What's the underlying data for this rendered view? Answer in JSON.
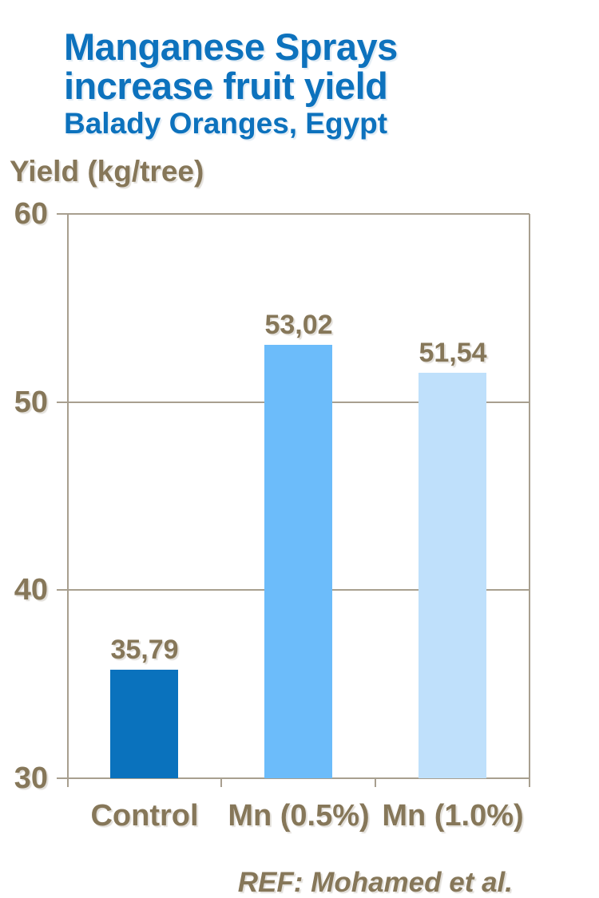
{
  "header": {
    "title_line1": "Manganese Sprays",
    "title_line2": "increase fruit yield",
    "subtitle": "Balady Oranges, Egypt"
  },
  "chart_data": {
    "type": "bar",
    "title": "Manganese Sprays increase fruit yield",
    "subtitle": "Balady Oranges, Egypt",
    "axis_title": "Yield (kg/tree)",
    "categories": [
      "Control",
      "Mn (0.5%)",
      "Mn (1.0%)"
    ],
    "values": [
      35.79,
      53.02,
      51.54
    ],
    "value_labels": [
      "35,79",
      "53,02",
      "51,54"
    ],
    "ylim": [
      30,
      60
    ],
    "yticks": [
      30,
      40,
      50,
      60
    ],
    "grid": true,
    "legend": "none",
    "bar_colors": [
      "#0a72bd",
      "#6cbcfa",
      "#bfe0fb"
    ]
  },
  "footer": {
    "reference": "REF: Mohamed et al."
  },
  "colors": {
    "title_blue": "#0d72bd",
    "label_brown": "#867759",
    "grid_line": "#a89f8f"
  }
}
